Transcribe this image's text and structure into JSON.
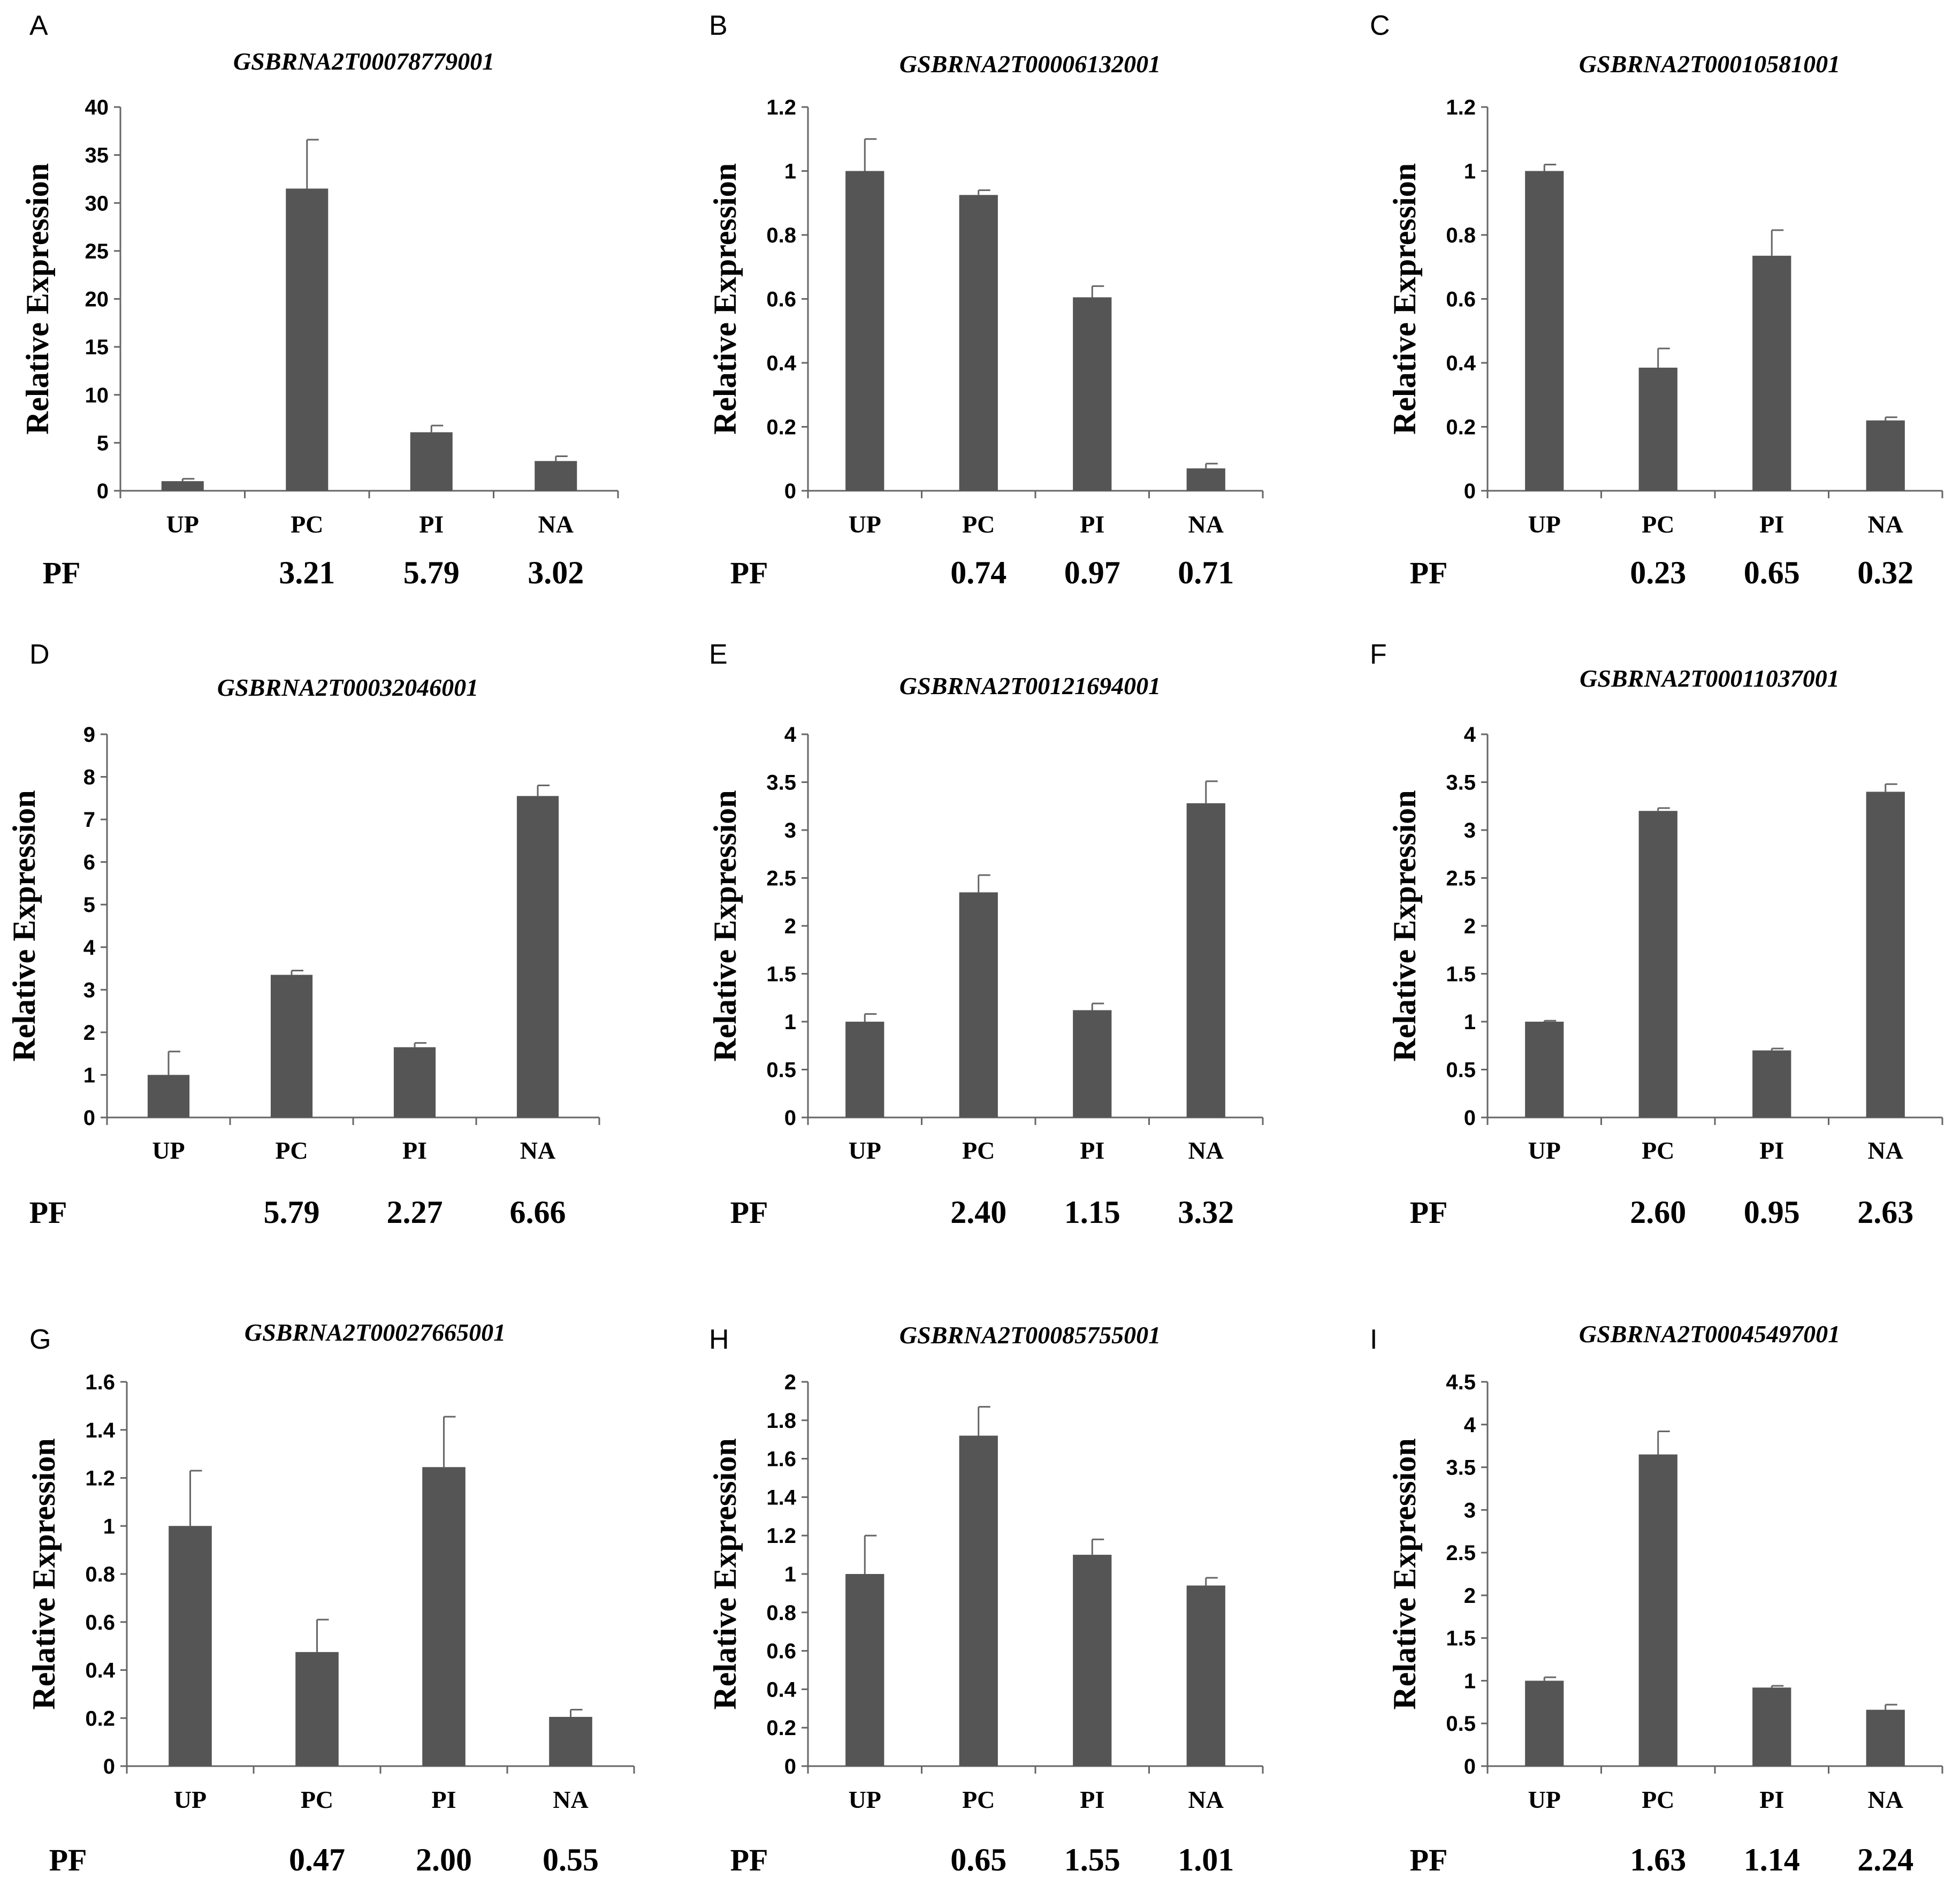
{
  "colors": {
    "bar": "#555555",
    "axis": "#666666",
    "text": "#000000"
  },
  "chart_data": [
    {
      "panel": "A",
      "type": "bar",
      "title": "GSBRNA2T00078779001",
      "ylabel": "Relative Expression",
      "categories": [
        "UP",
        "PC",
        "PI",
        "NA"
      ],
      "values": [
        1.0,
        31.5,
        6.1,
        3.1
      ],
      "errors": [
        0.25,
        5.1,
        0.7,
        0.5
      ],
      "ylim": [
        0,
        40
      ],
      "yticks": [
        "0",
        "5",
        "10",
        "15",
        "20",
        "25",
        "30",
        "35",
        "40"
      ],
      "pf_label": "PF",
      "pf_values": [
        "",
        "3.21",
        "5.79",
        "3.02"
      ]
    },
    {
      "panel": "B",
      "type": "bar",
      "title": "GSBRNA2T00006132001",
      "ylabel": "Relative Expression",
      "categories": [
        "UP",
        "PC",
        "PI",
        "NA"
      ],
      "values": [
        1.0,
        0.925,
        0.605,
        0.07
      ],
      "errors": [
        0.1,
        0.015,
        0.035,
        0.015
      ],
      "ylim": [
        0,
        1.2
      ],
      "yticks": [
        "0",
        "0.2",
        "0.4",
        "0.6",
        "0.8",
        "1",
        "1.2"
      ],
      "pf_label": "PF",
      "pf_values": [
        "",
        "0.74",
        "0.97",
        "0.71"
      ]
    },
    {
      "panel": "C",
      "type": "bar",
      "title": "GSBRNA2T00010581001",
      "ylabel": "Relative Expression",
      "categories": [
        "UP",
        "PC",
        "PI",
        "NA"
      ],
      "values": [
        1.0,
        0.385,
        0.735,
        0.22
      ],
      "errors": [
        0.02,
        0.06,
        0.08,
        0.01
      ],
      "ylim": [
        0,
        1.2
      ],
      "yticks": [
        "0",
        "0.2",
        "0.4",
        "0.6",
        "0.8",
        "1",
        "1.2"
      ],
      "pf_label": "PF",
      "pf_values": [
        "",
        "0.23",
        "0.65",
        "0.32"
      ]
    },
    {
      "panel": "D",
      "type": "bar",
      "title": "GSBRNA2T00032046001",
      "ylabel": "Relative Expression",
      "categories": [
        "UP",
        "PC",
        "PI",
        "NA"
      ],
      "values": [
        1.0,
        3.35,
        1.65,
        7.55
      ],
      "errors": [
        0.55,
        0.1,
        0.1,
        0.25
      ],
      "ylim": [
        0,
        9
      ],
      "yticks": [
        "0",
        "1",
        "2",
        "3",
        "4",
        "5",
        "6",
        "7",
        "8",
        "9"
      ],
      "pf_label": "PF",
      "pf_values": [
        "",
        "5.79",
        "2.27",
        "6.66"
      ]
    },
    {
      "panel": "E",
      "type": "bar",
      "title": "GSBRNA2T00121694001",
      "ylabel": "Relative Expression",
      "categories": [
        "UP",
        "PC",
        "PI",
        "NA"
      ],
      "values": [
        1.0,
        2.35,
        1.12,
        3.28
      ],
      "errors": [
        0.08,
        0.18,
        0.07,
        0.23
      ],
      "ylim": [
        0,
        4
      ],
      "yticks": [
        "0",
        "0.5",
        "1",
        "1.5",
        "2",
        "2.5",
        "3",
        "3.5",
        "4"
      ],
      "pf_label": "PF",
      "pf_values": [
        "",
        "2.40",
        "1.15",
        "3.32"
      ]
    },
    {
      "panel": "F",
      "type": "bar",
      "title": "GSBRNA2T00011037001",
      "ylabel": "Relative Expression",
      "categories": [
        "UP",
        "PC",
        "PI",
        "NA"
      ],
      "values": [
        1.0,
        3.2,
        0.7,
        3.4
      ],
      "errors": [
        0.01,
        0.03,
        0.02,
        0.08
      ],
      "ylim": [
        0,
        4
      ],
      "yticks": [
        "0",
        "0.5",
        "1",
        "1.5",
        "2",
        "2.5",
        "3",
        "3.5",
        "4"
      ],
      "pf_label": "PF",
      "pf_values": [
        "",
        "2.60",
        "0.95",
        "2.63"
      ]
    },
    {
      "panel": "G",
      "type": "bar",
      "title": "GSBRNA2T00027665001",
      "ylabel": "Relative Expression",
      "categories": [
        "UP",
        "PC",
        "PI",
        "NA"
      ],
      "values": [
        1.0,
        0.475,
        1.245,
        0.205
      ],
      "errors": [
        0.23,
        0.135,
        0.21,
        0.03
      ],
      "ylim": [
        0,
        1.6
      ],
      "yticks": [
        "0",
        "0.2",
        "0.4",
        "0.6",
        "0.8",
        "1",
        "1.2",
        "1.4",
        "1.6"
      ],
      "pf_label": "PF",
      "pf_values": [
        "",
        "0.47",
        "2.00",
        "0.55"
      ]
    },
    {
      "panel": "H",
      "type": "bar",
      "title": "GSBRNA2T00085755001",
      "ylabel": "Relative Expression",
      "categories": [
        "UP",
        "PC",
        "PI",
        "NA"
      ],
      "values": [
        1.0,
        1.72,
        1.1,
        0.94
      ],
      "errors": [
        0.2,
        0.15,
        0.08,
        0.04
      ],
      "ylim": [
        0,
        2
      ],
      "yticks": [
        "0",
        "0.2",
        "0.4",
        "0.6",
        "0.8",
        "1",
        "1.2",
        "1.4",
        "1.6",
        "1.8",
        "2"
      ],
      "pf_label": "PF",
      "pf_values": [
        "",
        "0.65",
        "1.55",
        "1.01"
      ]
    },
    {
      "panel": "I",
      "type": "bar",
      "title": "GSBRNA2T00045497001",
      "ylabel": "Relative Expression",
      "categories": [
        "UP",
        "PC",
        "PI",
        "NA"
      ],
      "values": [
        1.0,
        3.65,
        0.92,
        0.66
      ],
      "errors": [
        0.04,
        0.27,
        0.02,
        0.06
      ],
      "ylim": [
        0,
        4.5
      ],
      "yticks": [
        "0",
        "0.5",
        "1",
        "1.5",
        "2",
        "2.5",
        "3",
        "3.5",
        "4",
        "4.5"
      ],
      "pf_label": "PF",
      "pf_values": [
        "",
        "1.63",
        "1.14",
        "2.24"
      ]
    }
  ]
}
